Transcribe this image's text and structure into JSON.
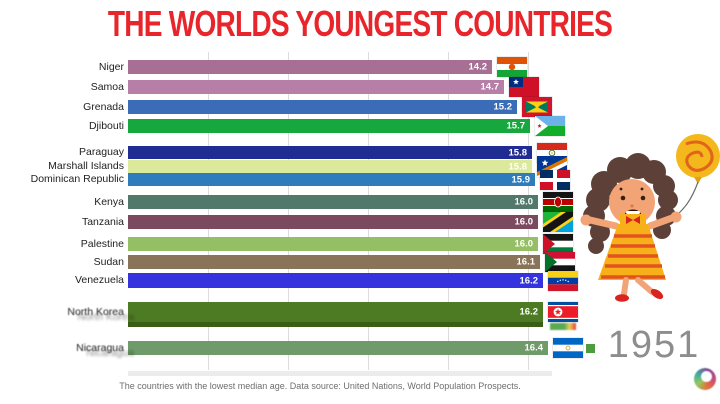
{
  "title": "THE WORLDS YOUNGEST COUNTRIES",
  "year_label": "1951",
  "footer_note": "The countries with the lowest median age. Data source: United Nations, World Population Prospects.",
  "colors": {
    "title": "#e8252b",
    "year": "#8d8d8d",
    "footer": "#6e6e6e",
    "gridline": "#dcdcdc",
    "value_text": "#ffffff"
  },
  "icons": {
    "logo": "swirl-logo",
    "illustration": "girl-with-balloon"
  },
  "chart_data": {
    "type": "bar",
    "orientation": "horizontal",
    "title": "THE WORLDS YOUNGEST COUNTRIES",
    "value_unit": "median age (years)",
    "xlim": [
      0,
      16.4
    ],
    "grid": true,
    "legend": "none",
    "bars": [
      {
        "country": "Niger",
        "value": 14.2,
        "color": "#a76f94",
        "flag": "flag-niger"
      },
      {
        "country": "Samoa",
        "value": 14.7,
        "color": "#b77ea7",
        "flag": "flag-samoa"
      },
      {
        "country": "Grenada",
        "value": 15.2,
        "color": "#3a6cb7",
        "flag": "flag-grenada"
      },
      {
        "country": "Djibouti",
        "value": 15.7,
        "color": "#16a73e",
        "flag": "flag-djibouti"
      },
      {
        "country": "Paraguay",
        "value": 15.8,
        "color": "#1f2c91",
        "flag": "flag-paraguay"
      },
      {
        "country": "Marshall Islands",
        "value": 15.8,
        "color": "#dce99b",
        "flag": "flag-marshall-islands"
      },
      {
        "country": "Dominican Republic",
        "value": 15.9,
        "color": "#2e7cbb",
        "flag": "flag-dominican-republic"
      },
      {
        "country": "Kenya",
        "value": 16.0,
        "color": "#51786a",
        "flag": "flag-kenya"
      },
      {
        "country": "Tanzania",
        "value": 16.0,
        "color": "#7b4a5f",
        "flag": "flag-tanzania"
      },
      {
        "country": "Palestine",
        "value": 16.0,
        "color": "#95bf64",
        "flag": "flag-palestine"
      },
      {
        "country": "Sudan",
        "value": 16.1,
        "color": "#8a7459",
        "flag": "flag-sudan"
      },
      {
        "country": "Venezuela",
        "value": 16.2,
        "color": "#3433dd",
        "flag": "flag-venezuela"
      },
      {
        "country": "North Korea",
        "value": 16.2,
        "color": "#4d7b23",
        "flag": "flag-north-korea",
        "transition_overlap": true
      },
      {
        "country": "Nicaragua",
        "value": 16.4,
        "color": "#6f9a69",
        "flag": "flag-nicaragua",
        "transition_overlap": true
      }
    ]
  }
}
